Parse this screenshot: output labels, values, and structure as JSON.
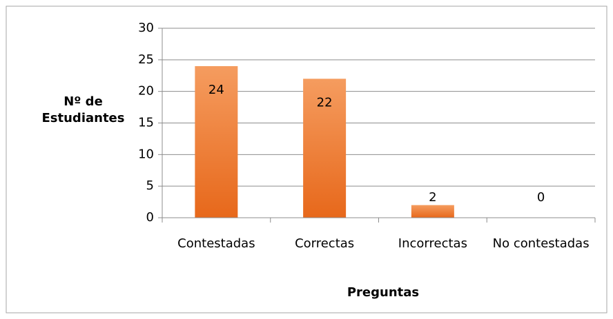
{
  "chart_data": {
    "type": "bar",
    "categories": [
      "Contestadas",
      "Correctas",
      "Incorrectas",
      "No contestadas"
    ],
    "values": [
      24,
      22,
      2,
      0
    ],
    "color": "#f07b2e",
    "ylim": [
      0,
      30
    ],
    "yticks": [
      0,
      5,
      10,
      15,
      20,
      25,
      30
    ],
    "grid": true,
    "ylabel": "Nº de Estudiantes",
    "xlabel": "Preguntas"
  }
}
